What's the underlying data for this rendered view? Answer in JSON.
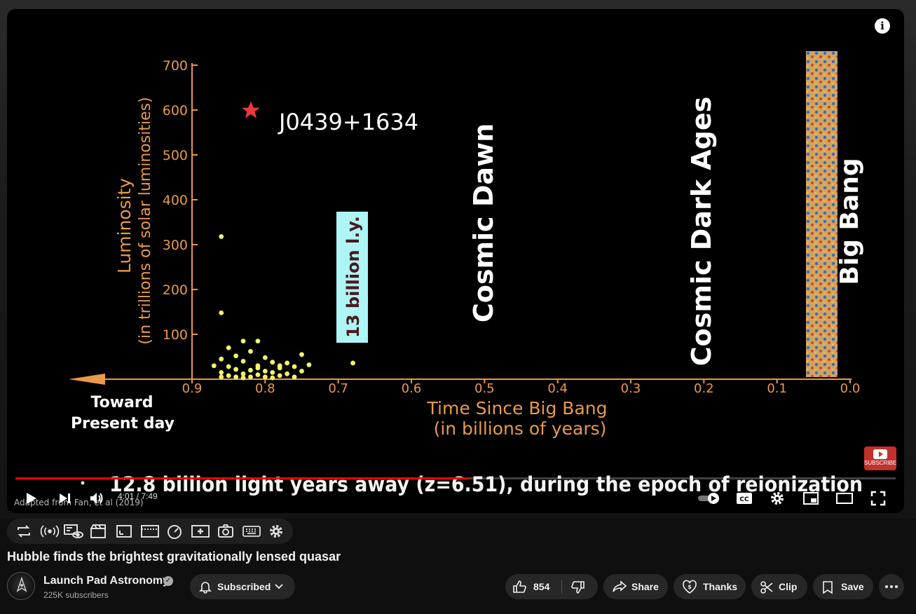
{
  "video": {
    "y_axis_label": "Luminosity",
    "y_axis_sublabel": "(in trillions of solar luminosities)",
    "x_axis_label": "Time Since Big Bang",
    "x_axis_sublabel": "(in billions of years)",
    "star_label": "J0439+1634",
    "distance_badge": "13 billion l.y.",
    "cosmic_dawn": "Cosmic Dawn",
    "cosmic_dark_ages": "Cosmic Dark Ages",
    "big_bang": "Big Bang",
    "toward_line1": "Toward",
    "toward_line2": "Present day",
    "caption": "12.8 billion light years away (z=6.51), during the epoch of reionization",
    "credit": "Adapted from Fan, et al (2019)",
    "subscribe_watermark": "SUBSCRIBE",
    "colors": {
      "axis": "#e89a4a",
      "star": "#e8383d",
      "points": "#f3f36b",
      "badge": "#aef5f5"
    }
  },
  "chart_data": {
    "type": "scatter",
    "xlabel": "Time Since Big Bang (in billions of years)",
    "ylabel": "Luminosity (in trillions of solar luminosities)",
    "xlim": [
      0.9,
      0.0
    ],
    "ylim": [
      0,
      700
    ],
    "x_ticks": [
      "0.9",
      "0.8",
      "0.7",
      "0.6",
      "0.5",
      "0.4",
      "0.3",
      "0.2",
      "0.1",
      "0.0"
    ],
    "y_ticks": [
      "100",
      "200",
      "300",
      "400",
      "500",
      "600",
      "700"
    ],
    "highlight": {
      "name": "J0439+1634",
      "x": 0.81,
      "y": 580
    },
    "points": [
      [
        0.86,
        318
      ],
      [
        0.86,
        148
      ],
      [
        0.83,
        85
      ],
      [
        0.81,
        85
      ],
      [
        0.85,
        70
      ],
      [
        0.82,
        62
      ],
      [
        0.75,
        55
      ],
      [
        0.84,
        52
      ],
      [
        0.8,
        48
      ],
      [
        0.86,
        45
      ],
      [
        0.83,
        40
      ],
      [
        0.79,
        38
      ],
      [
        0.77,
        36
      ],
      [
        0.74,
        32
      ],
      [
        0.68,
        36
      ],
      [
        0.81,
        30
      ],
      [
        0.85,
        28
      ],
      [
        0.78,
        25
      ],
      [
        0.76,
        28
      ],
      [
        0.84,
        22
      ],
      [
        0.82,
        20
      ],
      [
        0.8,
        18
      ],
      [
        0.79,
        15
      ],
      [
        0.86,
        15
      ],
      [
        0.83,
        12
      ],
      [
        0.81,
        10
      ],
      [
        0.77,
        12
      ],
      [
        0.78,
        8
      ],
      [
        0.85,
        8
      ],
      [
        0.82,
        5
      ],
      [
        0.8,
        5
      ],
      [
        0.84,
        5
      ],
      [
        0.86,
        5
      ],
      [
        0.79,
        3
      ],
      [
        0.76,
        5
      ],
      [
        0.83,
        3
      ],
      [
        0.81,
        25
      ],
      [
        0.78,
        30
      ],
      [
        0.75,
        18
      ],
      [
        0.87,
        30
      ]
    ]
  },
  "player": {
    "time_current": "4:01",
    "time_sep": " / ",
    "time_total": "7:49",
    "progress_fraction": 0.515,
    "info_glyph": "i"
  },
  "icons": {
    "play": "play-icon",
    "next": "next-icon",
    "volume": "volume-icon",
    "autoplay": "autoplay-toggle-icon",
    "cc": "cc-icon",
    "settings": "gear-icon",
    "miniplayer": "miniplayer-icon",
    "theater": "theater-icon",
    "fullscreen": "fullscreen-icon"
  },
  "cc_label": "CC",
  "title": "Hubble finds the brightest gravitationally lensed quasar",
  "channel": {
    "name": "Launch Pad Astronomy",
    "subscribers": "225K subscribers"
  },
  "actions": {
    "subscribed": "Subscribed",
    "likes": "854",
    "share": "Share",
    "thanks": "Thanks",
    "clip": "Clip",
    "save": "Save"
  }
}
